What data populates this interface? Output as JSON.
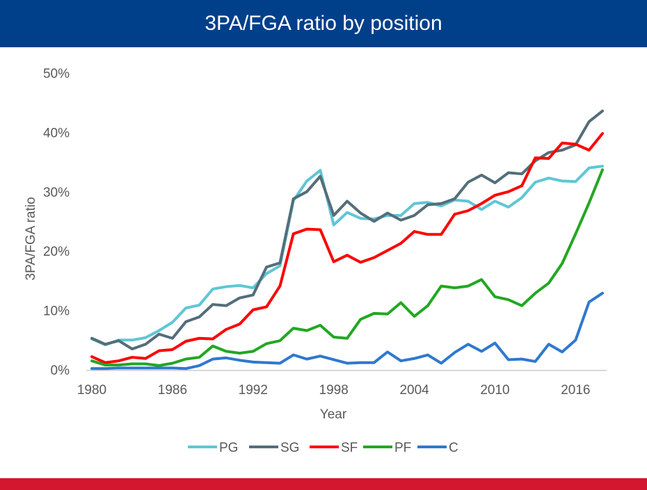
{
  "chart_data": {
    "type": "line",
    "title": "3PA/FGA ratio by position",
    "xlabel": "Year",
    "ylabel": "3PA/FGA ratio",
    "ylim": [
      0,
      50
    ],
    "yticks": [
      "0%",
      "10%",
      "20%",
      "30%",
      "40%",
      "50%"
    ],
    "xticks": [
      "1980",
      "1986",
      "1992",
      "1998",
      "2004",
      "2010",
      "2016"
    ],
    "xlim": [
      1980,
      2018
    ],
    "legend": "bottom",
    "grid": false,
    "x": [
      1980,
      1981,
      1982,
      1983,
      1984,
      1985,
      1986,
      1987,
      1988,
      1989,
      1990,
      1991,
      1992,
      1993,
      1994,
      1995,
      1996,
      1997,
      1998,
      1999,
      2000,
      2001,
      2002,
      2003,
      2004,
      2005,
      2006,
      2007,
      2008,
      2009,
      2010,
      2011,
      2012,
      2013,
      2014,
      2015,
      2016,
      2017,
      2018
    ],
    "series": [
      {
        "name": "PG",
        "color": "#5fc6d6",
        "values": [
          5.2,
          4.2,
          5.0,
          5.0,
          5.4,
          6.6,
          8.0,
          10.4,
          10.9,
          13.6,
          14.0,
          14.2,
          13.8,
          16.2,
          17.5,
          28.5,
          31.8,
          33.6,
          24.4,
          26.5,
          25.5,
          25.4,
          26.0,
          26.0,
          28.0,
          28.2,
          27.6,
          28.6,
          28.4,
          27.0,
          28.4,
          27.4,
          29.0,
          31.6,
          32.3,
          31.8,
          31.7,
          34.0,
          34.3
        ]
      },
      {
        "name": "SG",
        "color": "#546e7a",
        "values": [
          5.3,
          4.3,
          4.9,
          3.5,
          4.3,
          6.0,
          5.3,
          8.1,
          8.9,
          11.0,
          10.8,
          12.1,
          12.6,
          17.3,
          18.0,
          28.8,
          30.0,
          32.6,
          26.0,
          28.4,
          26.4,
          25.0,
          26.4,
          25.2,
          26.0,
          27.8,
          28.0,
          28.8,
          31.6,
          32.8,
          31.5,
          33.2,
          33.0,
          35.2,
          36.6,
          37.0,
          37.9,
          41.8,
          43.6
        ]
      },
      {
        "name": "SF",
        "color": "#ff0000",
        "values": [
          2.2,
          1.2,
          1.5,
          2.1,
          1.9,
          3.2,
          3.4,
          4.8,
          5.3,
          5.2,
          6.8,
          7.7,
          10.1,
          10.6,
          14.1,
          22.9,
          23.7,
          23.6,
          18.2,
          19.3,
          18.1,
          18.9,
          20.1,
          21.3,
          23.3,
          22.8,
          22.8,
          26.2,
          26.8,
          28.0,
          29.4,
          30.0,
          31.0,
          35.7,
          35.6,
          38.2,
          38.0,
          37.0,
          39.8
        ]
      },
      {
        "name": "PF",
        "color": "#22a722",
        "values": [
          1.5,
          0.8,
          0.8,
          1.0,
          1.0,
          0.7,
          1.1,
          1.8,
          2.1,
          4.0,
          3.1,
          2.8,
          3.1,
          4.4,
          4.9,
          7.0,
          6.6,
          7.5,
          5.5,
          5.3,
          8.5,
          9.5,
          9.4,
          11.3,
          9.0,
          10.8,
          14.1,
          13.8,
          14.1,
          15.2,
          12.3,
          11.8,
          10.8,
          12.9,
          14.6,
          17.9,
          22.9,
          28.1,
          33.7
        ]
      },
      {
        "name": "C",
        "color": "#2f78cf",
        "values": [
          0.2,
          0.2,
          0.3,
          0.3,
          0.3,
          0.3,
          0.3,
          0.2,
          0.7,
          1.8,
          2.0,
          1.6,
          1.3,
          1.2,
          1.1,
          2.5,
          1.8,
          2.3,
          1.7,
          1.1,
          1.2,
          1.2,
          3.0,
          1.5,
          1.9,
          2.5,
          1.1,
          2.9,
          4.3,
          3.1,
          4.5,
          1.7,
          1.8,
          1.4,
          4.3,
          3.0,
          5.0,
          11.4,
          12.9
        ]
      }
    ]
  },
  "colors": {
    "header": "#003f8a",
    "footer_bar": "#d3172e"
  }
}
